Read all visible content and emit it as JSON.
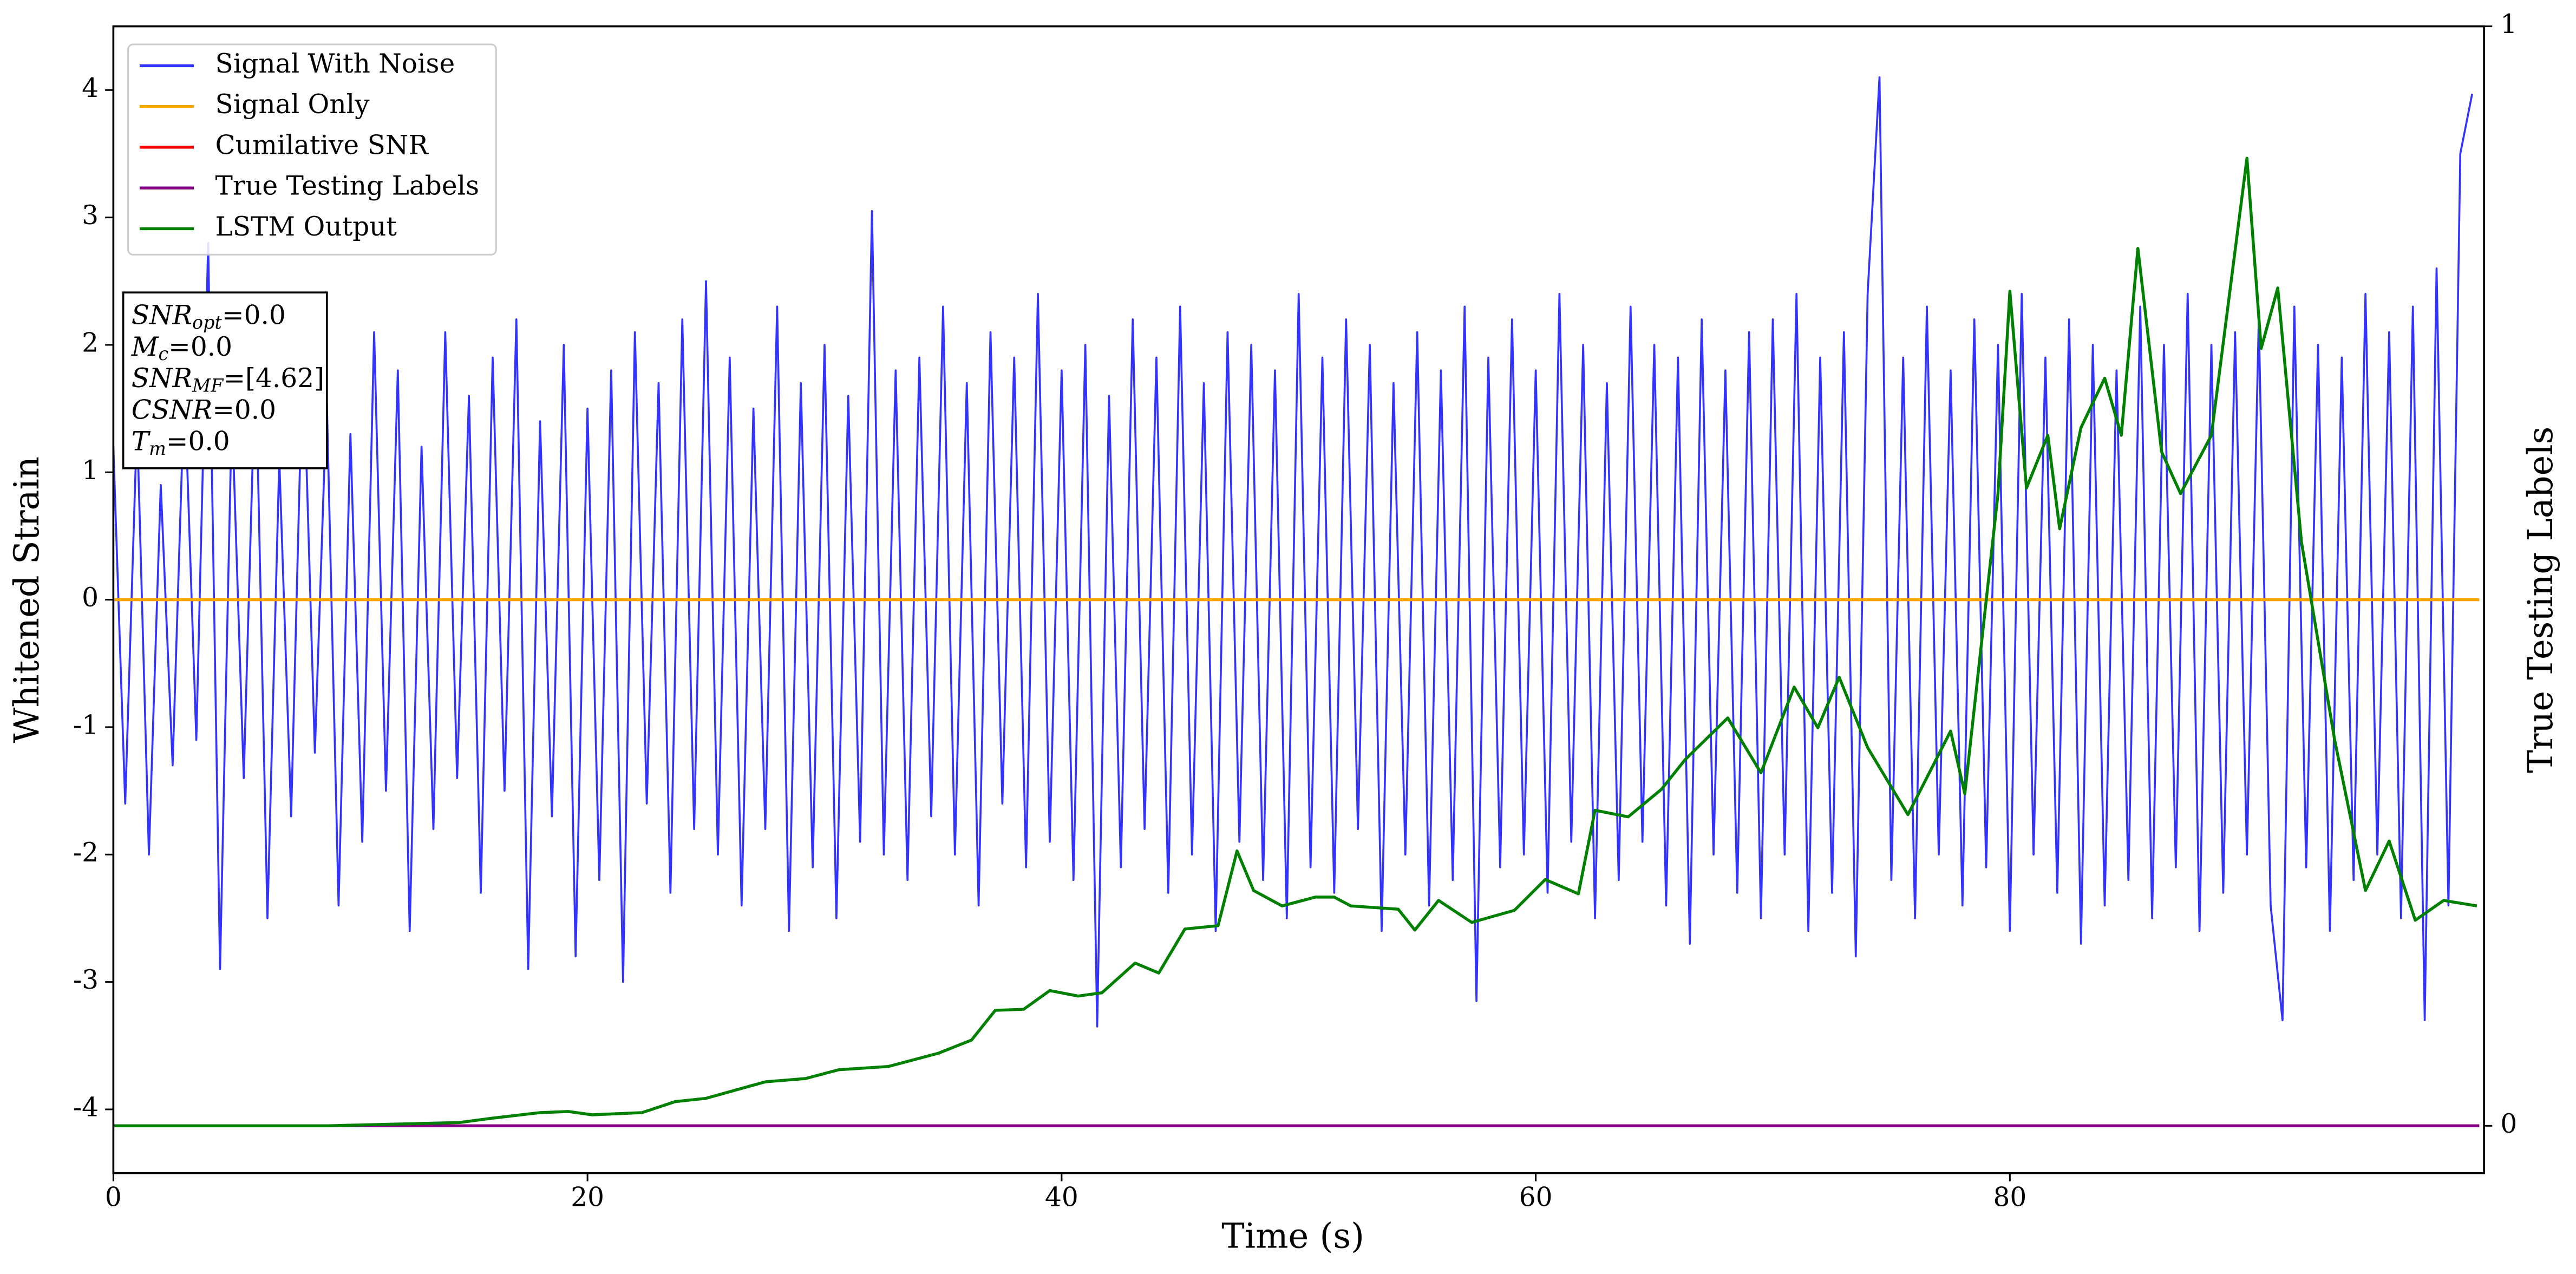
{
  "chart_data": {
    "type": "line",
    "xlabel": "Time (s)",
    "ylabel": "Whitened Strain",
    "y2label": "True Testing Labels",
    "xlim": [
      0,
      100
    ],
    "ylim": [
      -4.5,
      4.5
    ],
    "y2lim": [
      -0.043,
      1
    ],
    "xticks": [
      0,
      20,
      40,
      60,
      80
    ],
    "yticks": [
      -4,
      -3,
      -2,
      -1,
      0,
      1,
      2,
      3,
      4
    ],
    "y2ticks": [
      0,
      1
    ],
    "legend": "upper left",
    "annotations": [
      {
        "base": "SNR",
        "sub": "opt",
        "text": "=0.0"
      },
      {
        "base": "M",
        "sub": "c",
        "text": "=0.0"
      },
      {
        "base": "SNR",
        "sub": "MF",
        "text": "=[4.62]"
      },
      {
        "base": "CSNR",
        "sub": null,
        "text": "=0.0"
      },
      {
        "base": "T",
        "sub": "m",
        "text": "=0.0"
      }
    ],
    "series": [
      {
        "name": "Signal With Noise",
        "color": "#3333ff",
        "x": [
          0,
          0.5,
          1,
          1.5,
          2,
          2.5,
          3,
          3.5,
          4,
          4.5,
          5,
          5.5,
          6,
          6.5,
          7,
          7.5,
          8,
          8.5,
          9,
          9.5,
          10,
          10.5,
          11,
          11.5,
          12,
          12.5,
          13,
          13.5,
          14,
          14.5,
          15,
          15.5,
          16,
          16.5,
          17,
          17.5,
          18,
          18.5,
          19,
          19.5,
          20,
          20.5,
          21,
          21.5,
          22,
          22.5,
          23,
          23.5,
          24,
          24.5,
          25,
          25.5,
          26,
          26.5,
          27,
          27.5,
          28,
          28.5,
          29,
          29.5,
          30,
          30.5,
          31,
          31.5,
          32,
          32.5,
          33,
          33.5,
          34,
          34.5,
          35,
          35.5,
          36,
          36.5,
          37,
          37.5,
          38,
          38.5,
          39,
          39.5,
          40,
          40.5,
          41,
          41.5,
          42,
          42.5,
          43,
          43.5,
          44,
          44.5,
          45,
          45.5,
          46,
          46.5,
          47,
          47.5,
          48,
          48.5,
          49,
          49.5,
          50,
          50.5,
          51,
          51.5,
          52,
          52.5,
          53,
          53.5,
          54,
          54.5,
          55,
          55.5,
          56,
          56.5,
          57,
          57.5,
          58,
          58.5,
          59,
          59.5,
          60,
          60.5,
          61,
          61.5,
          62,
          62.5,
          63,
          63.5,
          64,
          64.5,
          65,
          65.5,
          66,
          66.5,
          67,
          67.5,
          68,
          68.5,
          69,
          69.5,
          70,
          70.5,
          71,
          71.5,
          72,
          72.5,
          73,
          73.5,
          74,
          74.5,
          75,
          75.5,
          76,
          76.5,
          77,
          77.5,
          78,
          78.5,
          79,
          79.5,
          80,
          80.5,
          81,
          81.5,
          82,
          82.5,
          83,
          83.5,
          84,
          84.5,
          85,
          85.5,
          86,
          86.5,
          87,
          87.5,
          88,
          88.5,
          89,
          89.5,
          90,
          90.5,
          91,
          91.5,
          92,
          92.5,
          93,
          93.5,
          94,
          94.5,
          95,
          95.5,
          96,
          96.5,
          97,
          97.5,
          98,
          98.5,
          99,
          99.5
        ],
        "values": [
          1.2,
          -1.6,
          1.4,
          -2.0,
          0.9,
          -1.3,
          1.7,
          -1.1,
          2.8,
          -2.9,
          1.5,
          -1.4,
          1.9,
          -2.5,
          1.1,
          -1.7,
          2.0,
          -1.2,
          1.6,
          -2.4,
          1.3,
          -1.9,
          2.1,
          -1.5,
          1.8,
          -2.6,
          1.2,
          -1.8,
          2.1,
          -1.4,
          1.6,
          -2.3,
          1.9,
          -1.5,
          2.2,
          -2.9,
          1.4,
          -1.7,
          2.0,
          -2.8,
          1.5,
          -2.2,
          1.8,
          -3.0,
          2.1,
          -1.6,
          1.7,
          -2.3,
          2.2,
          -1.8,
          2.5,
          -2.0,
          1.9,
          -2.4,
          1.5,
          -1.8,
          2.3,
          -2.6,
          1.7,
          -2.1,
          2.0,
          -2.5,
          1.6,
          -1.9,
          3.05,
          -2.0,
          1.8,
          -2.2,
          1.9,
          -1.7,
          2.3,
          -2.0,
          1.7,
          -2.4,
          2.1,
          -1.6,
          1.9,
          -2.1,
          2.4,
          -1.9,
          1.8,
          -2.2,
          2.0,
          -3.35,
          1.6,
          -2.1,
          2.2,
          -1.8,
          1.9,
          -2.3,
          2.3,
          -2.0,
          1.7,
          -2.6,
          2.1,
          -1.9,
          2.0,
          -2.2,
          1.8,
          -2.5,
          2.4,
          -2.1,
          1.9,
          -2.3,
          2.2,
          -1.8,
          2.0,
          -2.6,
          1.7,
          -2.0,
          2.1,
          -2.4,
          1.8,
          -2.2,
          2.3,
          -3.15,
          1.9,
          -2.1,
          2.2,
          -2.0,
          1.8,
          -2.3,
          2.4,
          -1.9,
          2.0,
          -2.5,
          1.7,
          -2.2,
          2.3,
          -1.9,
          2.0,
          -2.4,
          1.9,
          -2.7,
          2.2,
          -2.0,
          1.8,
          -2.3,
          2.1,
          -2.5,
          2.2,
          -2.0,
          2.4,
          -2.6,
          1.9,
          -2.3,
          2.1,
          -2.8,
          2.4,
          4.1,
          -2.2,
          1.9,
          -2.5,
          2.3,
          -2.0,
          1.8,
          -2.4,
          2.2,
          -2.1,
          2.0,
          -2.6,
          2.4,
          -2.0,
          1.9,
          -2.3,
          2.2,
          -2.7,
          2.0,
          -2.4,
          1.8,
          -2.2,
          2.3,
          -2.5,
          2.0,
          -2.1,
          2.4,
          -2.6,
          2.0,
          -2.3,
          2.1,
          -2.0,
          2.2,
          -2.4,
          -3.3,
          2.3,
          -2.1,
          2.0,
          -2.6,
          1.9,
          -2.2,
          2.4,
          -2.0,
          2.1,
          -2.5,
          2.3,
          -3.3,
          2.6,
          -2.4,
          3.5,
          3.97
        ]
      },
      {
        "name": "Signal Only",
        "color": "#ffa500",
        "x": [
          0,
          99.8
        ],
        "values": [
          0,
          0
        ]
      },
      {
        "name": "Cumilative SNR",
        "color": "#ff0000",
        "axis": "y2",
        "x": [
          0,
          99.8
        ],
        "values": [
          0,
          0
        ]
      },
      {
        "name": "True Testing Labels",
        "color": "#800080",
        "axis": "y2",
        "x": [
          0,
          99.8
        ],
        "values": [
          0,
          0
        ]
      },
      {
        "name": "LSTM Output",
        "color": "#008000",
        "axis": "y2",
        "x": [
          0,
          9,
          14.6,
          16,
          18,
          19.2,
          20.2,
          22.3,
          23.7,
          25,
          27.5,
          29.2,
          30.6,
          32.7,
          34.8,
          36.2,
          37.2,
          38.4,
          39.5,
          40.7,
          41.7,
          43.1,
          44.1,
          45.2,
          46.6,
          47.4,
          48.1,
          49.3,
          50.7,
          51.5,
          52.2,
          54.2,
          54.9,
          55.9,
          57.3,
          59.1,
          60.4,
          61.8,
          62.5,
          63.9,
          65.3,
          66.3,
          68.1,
          69.5,
          70.9,
          71.9,
          72.8,
          74,
          75.7,
          77.5,
          78.1,
          79.5,
          80,
          80.7,
          81.6,
          82.1,
          83,
          84,
          84.7,
          85.4,
          86.4,
          87.2,
          88.5,
          90,
          90.6,
          91.3,
          92.3,
          93.7,
          95,
          96,
          97.1,
          98.3,
          99.7
        ],
        "values": [
          0,
          0,
          0.003,
          0.007,
          0.012,
          0.013,
          0.01,
          0.012,
          0.022,
          0.025,
          0.04,
          0.043,
          0.051,
          0.054,
          0.066,
          0.078,
          0.105,
          0.106,
          0.123,
          0.118,
          0.121,
          0.148,
          0.139,
          0.179,
          0.182,
          0.25,
          0.214,
          0.2,
          0.208,
          0.208,
          0.2,
          0.197,
          0.178,
          0.205,
          0.185,
          0.196,
          0.224,
          0.211,
          0.287,
          0.281,
          0.306,
          0.333,
          0.371,
          0.321,
          0.399,
          0.362,
          0.408,
          0.344,
          0.283,
          0.359,
          0.302,
          0.575,
          0.759,
          0.58,
          0.628,
          0.543,
          0.635,
          0.68,
          0.628,
          0.798,
          0.613,
          0.575,
          0.628,
          0.88,
          0.707,
          0.762,
          0.531,
          0.351,
          0.214,
          0.259,
          0.187,
          0.205,
          0.2
        ]
      }
    ]
  }
}
